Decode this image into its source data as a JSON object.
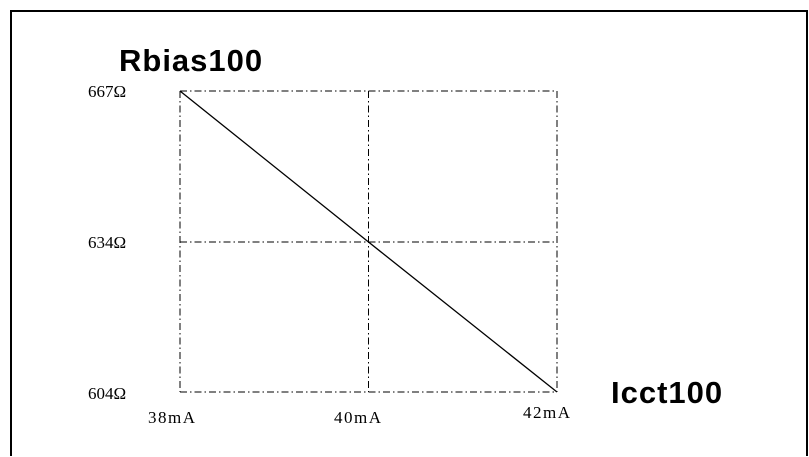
{
  "chart_data": {
    "type": "line",
    "title": "",
    "ylabel": "Rbias100",
    "xlabel": "Icct100",
    "x_ticks": [
      "38mA",
      "40mA",
      "42mA"
    ],
    "y_ticks": [
      "667Ω",
      "634Ω",
      "604Ω"
    ],
    "xlim": [
      38,
      42
    ],
    "ylim": [
      604,
      667
    ],
    "x_unit": "mA",
    "y_unit": "Ω",
    "grid": true,
    "grid_style": "dash-dot",
    "series": [
      {
        "x": [
          38,
          40,
          42
        ],
        "y": [
          667,
          634,
          604
        ]
      }
    ]
  }
}
